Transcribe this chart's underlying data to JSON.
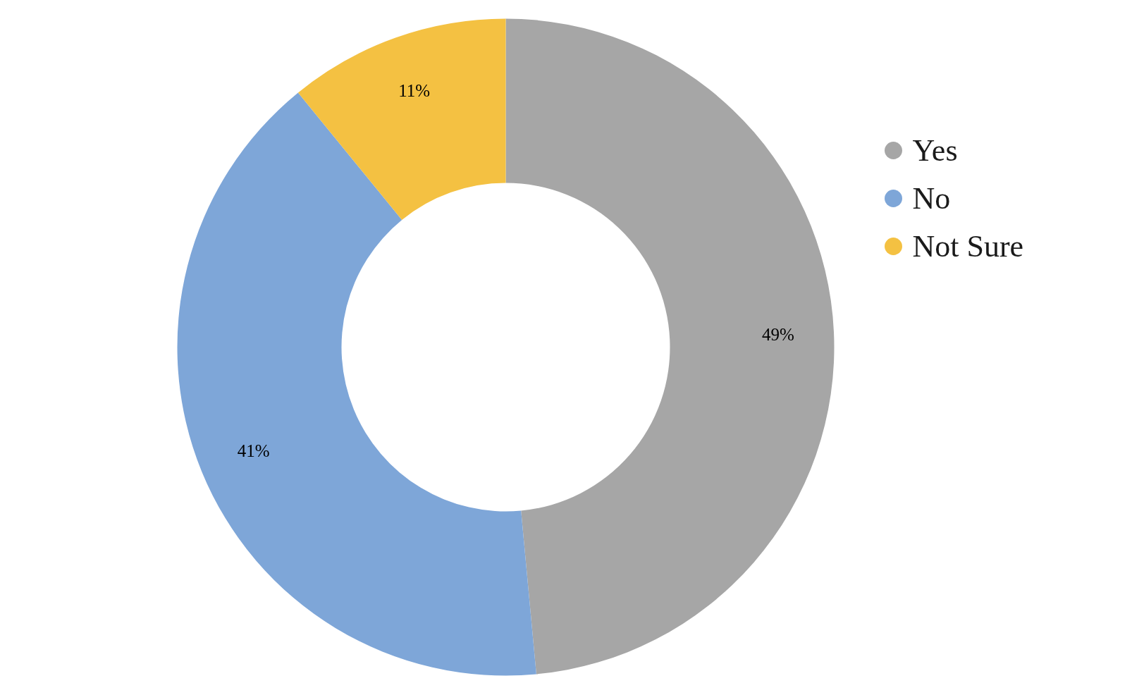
{
  "chart_data": {
    "type": "donut",
    "categories": [
      "Yes",
      "No",
      "Not Sure"
    ],
    "values": [
      49,
      41,
      11
    ],
    "colors": [
      "#a6a6a6",
      "#7ea6d8",
      "#f4c142"
    ],
    "value_labels": [
      "49%",
      "41%",
      "11%"
    ],
    "legend": "top right"
  }
}
